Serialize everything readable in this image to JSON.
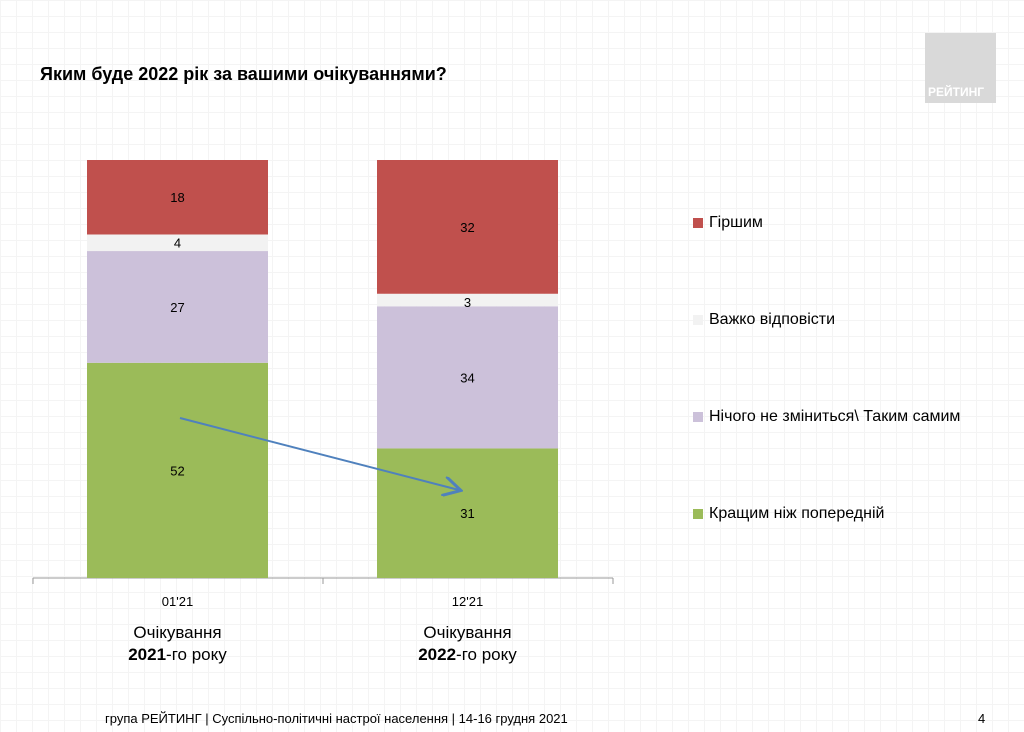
{
  "title": "Яким буде 2022 рік за вашими очікуваннями?",
  "logo": "РЕЙТИНГ",
  "footer": "група РЕЙТИНГ | Суспільно-політичні настрої населення | 14-16 грудня 2021",
  "page_number": "4",
  "chart_data": {
    "type": "bar",
    "stacked": true,
    "categories": [
      "01'21",
      "12'21"
    ],
    "category_subtitles": [
      {
        "line1": "Очікування",
        "bold": "2021",
        "rest": "-го року"
      },
      {
        "line1": "Очікування",
        "bold": "2022",
        "rest": "-го року"
      }
    ],
    "series": [
      {
        "name": "Кращим ніж попередній",
        "values": [
          52,
          31
        ],
        "color": "#9bbb59"
      },
      {
        "name": "Нічого не зміниться\\ Таким самим",
        "values": [
          27,
          34
        ],
        "color": "#ccc1da"
      },
      {
        "name": "Важко відповісти",
        "values": [
          4,
          3
        ],
        "color": "#f2f2f2"
      },
      {
        "name": "Гіршим",
        "values": [
          18,
          32
        ],
        "color": "#c0504d"
      }
    ],
    "legend": "right",
    "annotation": "arrow from 01'21 Кращим to 12'21 Кращим",
    "arrow_color": "#4f81bd"
  }
}
